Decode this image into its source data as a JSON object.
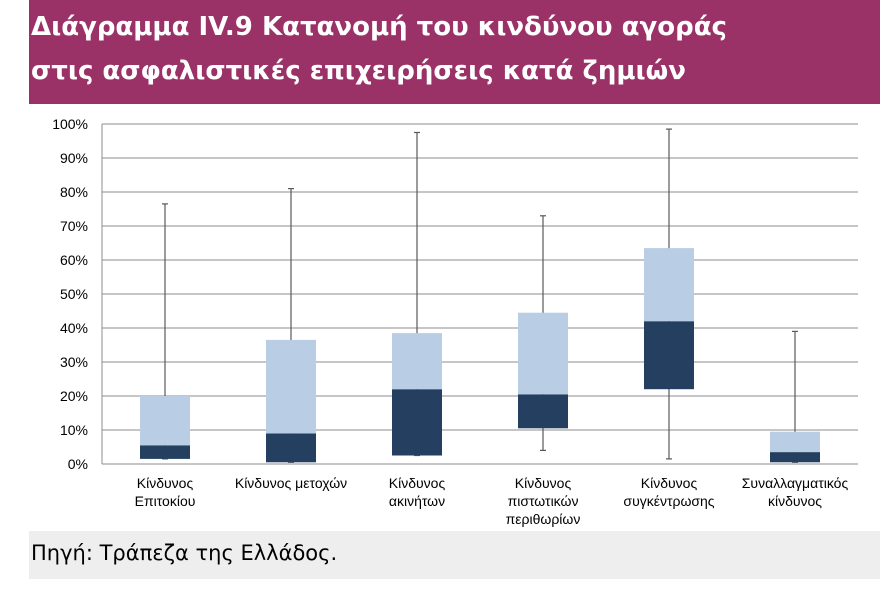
{
  "title": {
    "line1": "Διάγραμμα IV.9 Κατανομή του κινδύνου αγοράς",
    "line2": "στις ασφαλιστικές επιχειρήσεις κατά ζημιών"
  },
  "source": "Πηγή: Τράπεζα της Ελλάδος.",
  "colors": {
    "header_bg": "#9b3267",
    "box_lower": "#243f60",
    "box_upper": "#b9cde5",
    "whisker": "#595959",
    "grid": "#8c8c8c"
  },
  "chart_data": {
    "type": "box",
    "title": "",
    "xlabel": "",
    "ylabel": "",
    "ylim": [
      0,
      100
    ],
    "y_ticks": [
      "0%",
      "10%",
      "20%",
      "30%",
      "40%",
      "50%",
      "60%",
      "70%",
      "80%",
      "90%",
      "100%"
    ],
    "grid": true,
    "legend": "none",
    "categories": [
      {
        "label": [
          "Κίνδυνος",
          "Επιτοκίου"
        ],
        "min": 1.5,
        "q1": 1.5,
        "median": 5.5,
        "q3": 20,
        "max": 76.5
      },
      {
        "label": [
          "Κίνδυνος μετοχών"
        ],
        "min": 0.5,
        "q1": 0.5,
        "median": 9,
        "q3": 36.5,
        "max": 81
      },
      {
        "label": [
          "Κίνδυνος",
          "ακινήτων"
        ],
        "min": 2.5,
        "q1": 2.5,
        "median": 22,
        "q3": 38.5,
        "max": 97.5
      },
      {
        "label": [
          "Κίνδυνος",
          "πιστωτικών",
          "περιθωρίων"
        ],
        "min": 4,
        "q1": 10.5,
        "median": 20.5,
        "q3": 44.5,
        "max": 73
      },
      {
        "label": [
          "Κίνδυνος",
          "συγκέντρωσης"
        ],
        "min": 1.5,
        "q1": 22,
        "median": 42,
        "q3": 63.5,
        "max": 98.5
      },
      {
        "label": [
          "Συναλλαγματικός",
          "κίνδυνος"
        ],
        "min": 0.5,
        "q1": 0.5,
        "median": 3.5,
        "q3": 9.5,
        "max": 39
      }
    ]
  }
}
